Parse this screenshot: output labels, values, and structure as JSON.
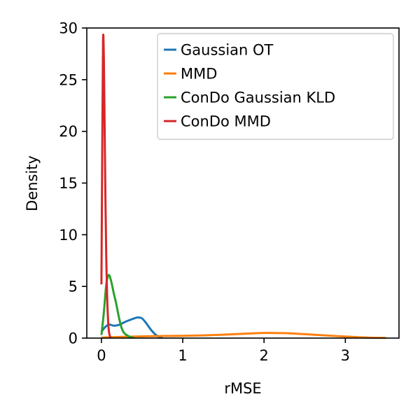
{
  "chart_data": {
    "type": "line",
    "title": "",
    "xlabel": "rMSE",
    "ylabel": "Density",
    "xlim": [
      -0.18,
      3.66
    ],
    "ylim": [
      0,
      30
    ],
    "xticks": [
      0,
      1,
      2,
      3
    ],
    "yticks": [
      0,
      5,
      10,
      15,
      20,
      25,
      30
    ],
    "grid": false,
    "legend_position": "top-right",
    "series": [
      {
        "name": "Gaussian OT",
        "color": "#1f77b4",
        "x": [
          0.0,
          0.05,
          0.1,
          0.15,
          0.2,
          0.25,
          0.3,
          0.35,
          0.4,
          0.45,
          0.5,
          0.55,
          0.6,
          0.65,
          0.7,
          0.75
        ],
        "y": [
          0.6,
          1.1,
          1.3,
          1.2,
          1.25,
          1.4,
          1.6,
          1.75,
          1.9,
          2.0,
          1.9,
          1.45,
          0.9,
          0.45,
          0.15,
          0.03
        ]
      },
      {
        "name": "MMD",
        "color": "#ff7f0e",
        "x": [
          0.0,
          0.25,
          0.5,
          0.75,
          1.0,
          1.25,
          1.5,
          1.75,
          2.0,
          2.25,
          2.5,
          2.75,
          3.0,
          3.25,
          3.5
        ],
        "y": [
          0.05,
          0.12,
          0.17,
          0.2,
          0.22,
          0.26,
          0.33,
          0.42,
          0.5,
          0.48,
          0.38,
          0.26,
          0.15,
          0.06,
          0.02
        ]
      },
      {
        "name": "ConDo Gaussian KLD",
        "color": "#2ca02c",
        "x": [
          0.0,
          0.03,
          0.06,
          0.09,
          0.12,
          0.15,
          0.18,
          0.21,
          0.24,
          0.27,
          0.3,
          0.33,
          0.36,
          0.4
        ],
        "y": [
          0.3,
          2.5,
          5.2,
          6.1,
          5.5,
          4.4,
          3.4,
          2.2,
          1.2,
          0.6,
          0.35,
          0.2,
          0.1,
          0.03
        ]
      },
      {
        "name": "ConDo MMD",
        "color": "#d62728",
        "x": [
          0.0,
          0.01,
          0.02,
          0.03,
          0.04,
          0.05,
          0.06,
          0.07,
          0.08,
          0.09,
          0.1,
          0.11,
          0.12
        ],
        "y": [
          5.2,
          18.0,
          28.8,
          27.0,
          20.0,
          13.0,
          7.5,
          4.0,
          2.0,
          0.8,
          0.3,
          0.1,
          0.02
        ]
      }
    ]
  }
}
